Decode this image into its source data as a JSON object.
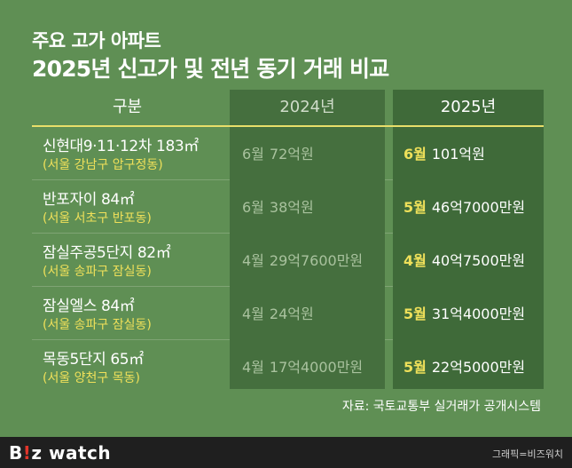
{
  "title_line1": "주요 고가 아파트",
  "title_line2": "2025년 신고가 및 전년 동기 거래 비교",
  "headers": {
    "division": "구분",
    "y2024": "2024년",
    "y2025": "2025년"
  },
  "rows": [
    {
      "name": "신현대9·11·12차 183㎡",
      "location": "(서울 강남구 압구정동)",
      "month_2024": "6월",
      "price_2024": "72억원",
      "month_2025": "6월",
      "price_2025": "101억원"
    },
    {
      "name": "반포자이 84㎡",
      "location": "(서울 서초구 반포동)",
      "month_2024": "6월",
      "price_2024": "38억원",
      "month_2025": "5월",
      "price_2025": "46억7000만원"
    },
    {
      "name": "잠실주공5단지 82㎡",
      "location": "(서울 송파구 잠실동)",
      "month_2024": "4월",
      "price_2024": "29억7600만원",
      "month_2025": "4월",
      "price_2025": "40억7500만원"
    },
    {
      "name": "잠실엘스 84㎡",
      "location": "(서울 송파구 잠실동)",
      "month_2024": "4월",
      "price_2024": "24억원",
      "month_2025": "5월",
      "price_2025": "31억4000만원"
    },
    {
      "name": "목동5단지 65㎡",
      "location": "(서울 양천구 목동)",
      "month_2024": "4월",
      "price_2024": "17억4000만원",
      "month_2025": "5월",
      "price_2025": "22억5000만원"
    }
  ],
  "source": "자료: 국토교통부 실거래가 공개시스템",
  "footer": {
    "logo_b": "B",
    "logo_dot": "!",
    "logo_rest": "z watch",
    "credit": "그래픽=비즈워치"
  },
  "colors": {
    "background": "#5f8f54",
    "column": "#3f6a39",
    "accent_line": "#e8de6a",
    "location_text": "#efe05a"
  }
}
